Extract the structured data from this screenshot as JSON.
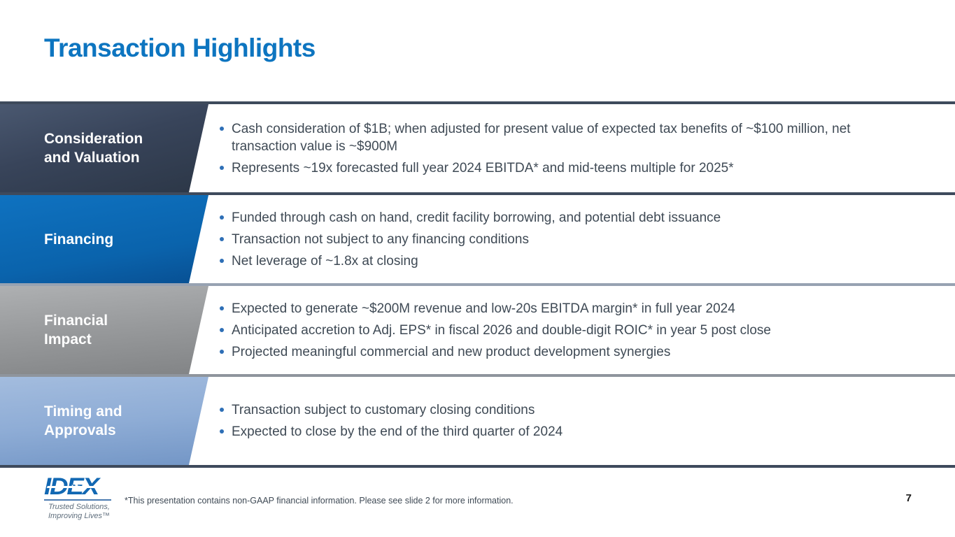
{
  "slide": {
    "title": "Transaction Highlights",
    "footnote": "*This presentation contains non-GAAP financial information. Please see slide 2 for more information.",
    "page_number": "7"
  },
  "logo": {
    "wordmark": "IDEX",
    "airplane_icon": "airplane-icon",
    "tagline_line1": "Trusted Solutions,",
    "tagline_line2": "Improving Lives™"
  },
  "rows": [
    {
      "label": "Consideration and Valuation",
      "label_lines": [
        "Consideration",
        "and Valuation"
      ],
      "bullets": [
        "Cash consideration of $1B; when adjusted for present value of expected tax benefits of ~$100 million, net transaction value is ~$900M",
        "Represents ~19x forecasted full year 2024 EBITDA* and mid-teens multiple for 2025*"
      ]
    },
    {
      "label": "Financing",
      "label_lines": [
        "Financing"
      ],
      "bullets": [
        "Funded through cash on hand, credit facility borrowing, and potential debt issuance",
        "Transaction not subject to any financing conditions",
        "Net leverage of ~1.8x at closing"
      ]
    },
    {
      "label": "Financial Impact",
      "label_lines": [
        "Financial",
        "Impact"
      ],
      "bullets": [
        "Expected to generate ~$200M revenue and low-20s EBITDA margin* in full year 2024",
        "Anticipated accretion to Adj. EPS* in fiscal 2026 and double-digit ROIC* in year 5 post close",
        "Projected meaningful commercial and new product development synergies"
      ]
    },
    {
      "label": "Timing and Approvals",
      "label_lines": [
        "Timing and",
        "Approvals"
      ],
      "bullets": [
        "Transaction subject to customary closing conditions",
        "Expected to close by the end of the third quarter of 2024"
      ]
    }
  ],
  "colors": {
    "title_blue": "#0d75c0",
    "row_consideration": "#38445a",
    "row_financing": "#0a63ac",
    "row_financial_impact": "#97999b",
    "row_timing": "#8fadd6",
    "separator_dark": "#3e4a5c",
    "bullet_dot": "#2e6fb6",
    "body_text": "#3f4a55",
    "logo_blue": "#1268b3"
  }
}
